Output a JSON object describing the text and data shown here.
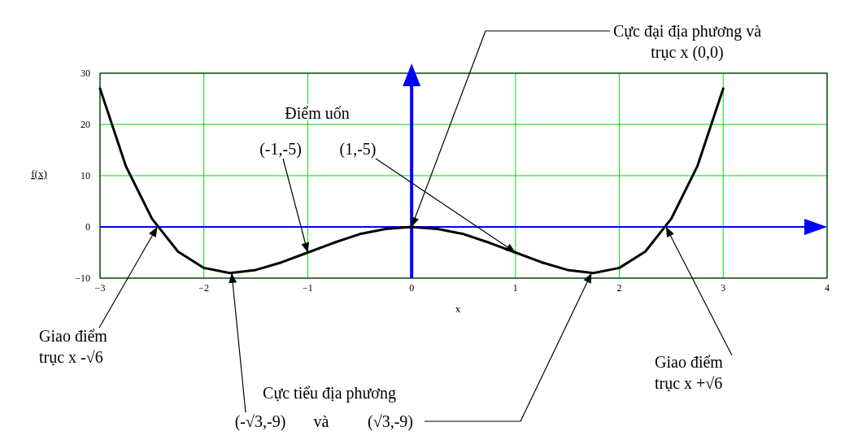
{
  "chart_data": {
    "type": "line",
    "xlabel": "x",
    "ylabel": "f(x)",
    "x": [
      -3,
      -2.75,
      -2.5,
      -2.25,
      -2,
      -1.75,
      -1.5,
      -1.25,
      -1,
      -0.75,
      -0.5,
      -0.25,
      0,
      0.25,
      0.5,
      0.75,
      1,
      1.25,
      1.5,
      1.75,
      2,
      2.25,
      2.5,
      2.75,
      3
    ],
    "series": [
      {
        "color": "#000000",
        "values": [
          27,
          11.8,
          1.6,
          -4.8,
          -8,
          -9,
          -8.4,
          -6.9,
          -5,
          -3.1,
          -1.4,
          -0.4,
          0,
          -0.4,
          -1.4,
          -3.1,
          -5,
          -6.9,
          -8.4,
          -9,
          -8,
          -4.8,
          1.6,
          11.8,
          27
        ]
      }
    ],
    "xlim": [
      -3,
      4
    ],
    "xticks": [
      -3,
      -2,
      -1,
      0,
      1,
      2,
      3,
      4
    ],
    "ylim": [
      -10,
      30
    ],
    "yticks": [
      -10,
      0,
      10,
      20,
      30
    ],
    "grid": true,
    "marker": "none",
    "line_style": "solid",
    "ref_lines": [
      {
        "axis": "x",
        "value": 0,
        "color": "#0000ff"
      },
      {
        "axis": "y",
        "value": 0,
        "color": "#0000ff"
      }
    ],
    "annotations": [
      {
        "text": "Cực đại địa phương và\ntrục x (0,0)",
        "x": 0,
        "y": 0
      },
      "Điểm uốn",
      {
        "text": "(-1,-5)",
        "x": -1,
        "y": -5
      },
      {
        "text": "(1,-5)",
        "x": 1,
        "y": -5
      },
      {
        "text": "Giao điểm\ntrục x  -√6",
        "x": -2.449,
        "y": 0
      },
      {
        "text": "Giao điểm\ntrục x  +√6",
        "x": 2.449,
        "y": 0
      },
      "Cực tiểu địa phương",
      {
        "text": "(-√3,-9)",
        "x": -1.732,
        "y": -9
      },
      "và",
      {
        "text": "(√3,-9)",
        "x": 1.732,
        "y": -9
      }
    ]
  }
}
